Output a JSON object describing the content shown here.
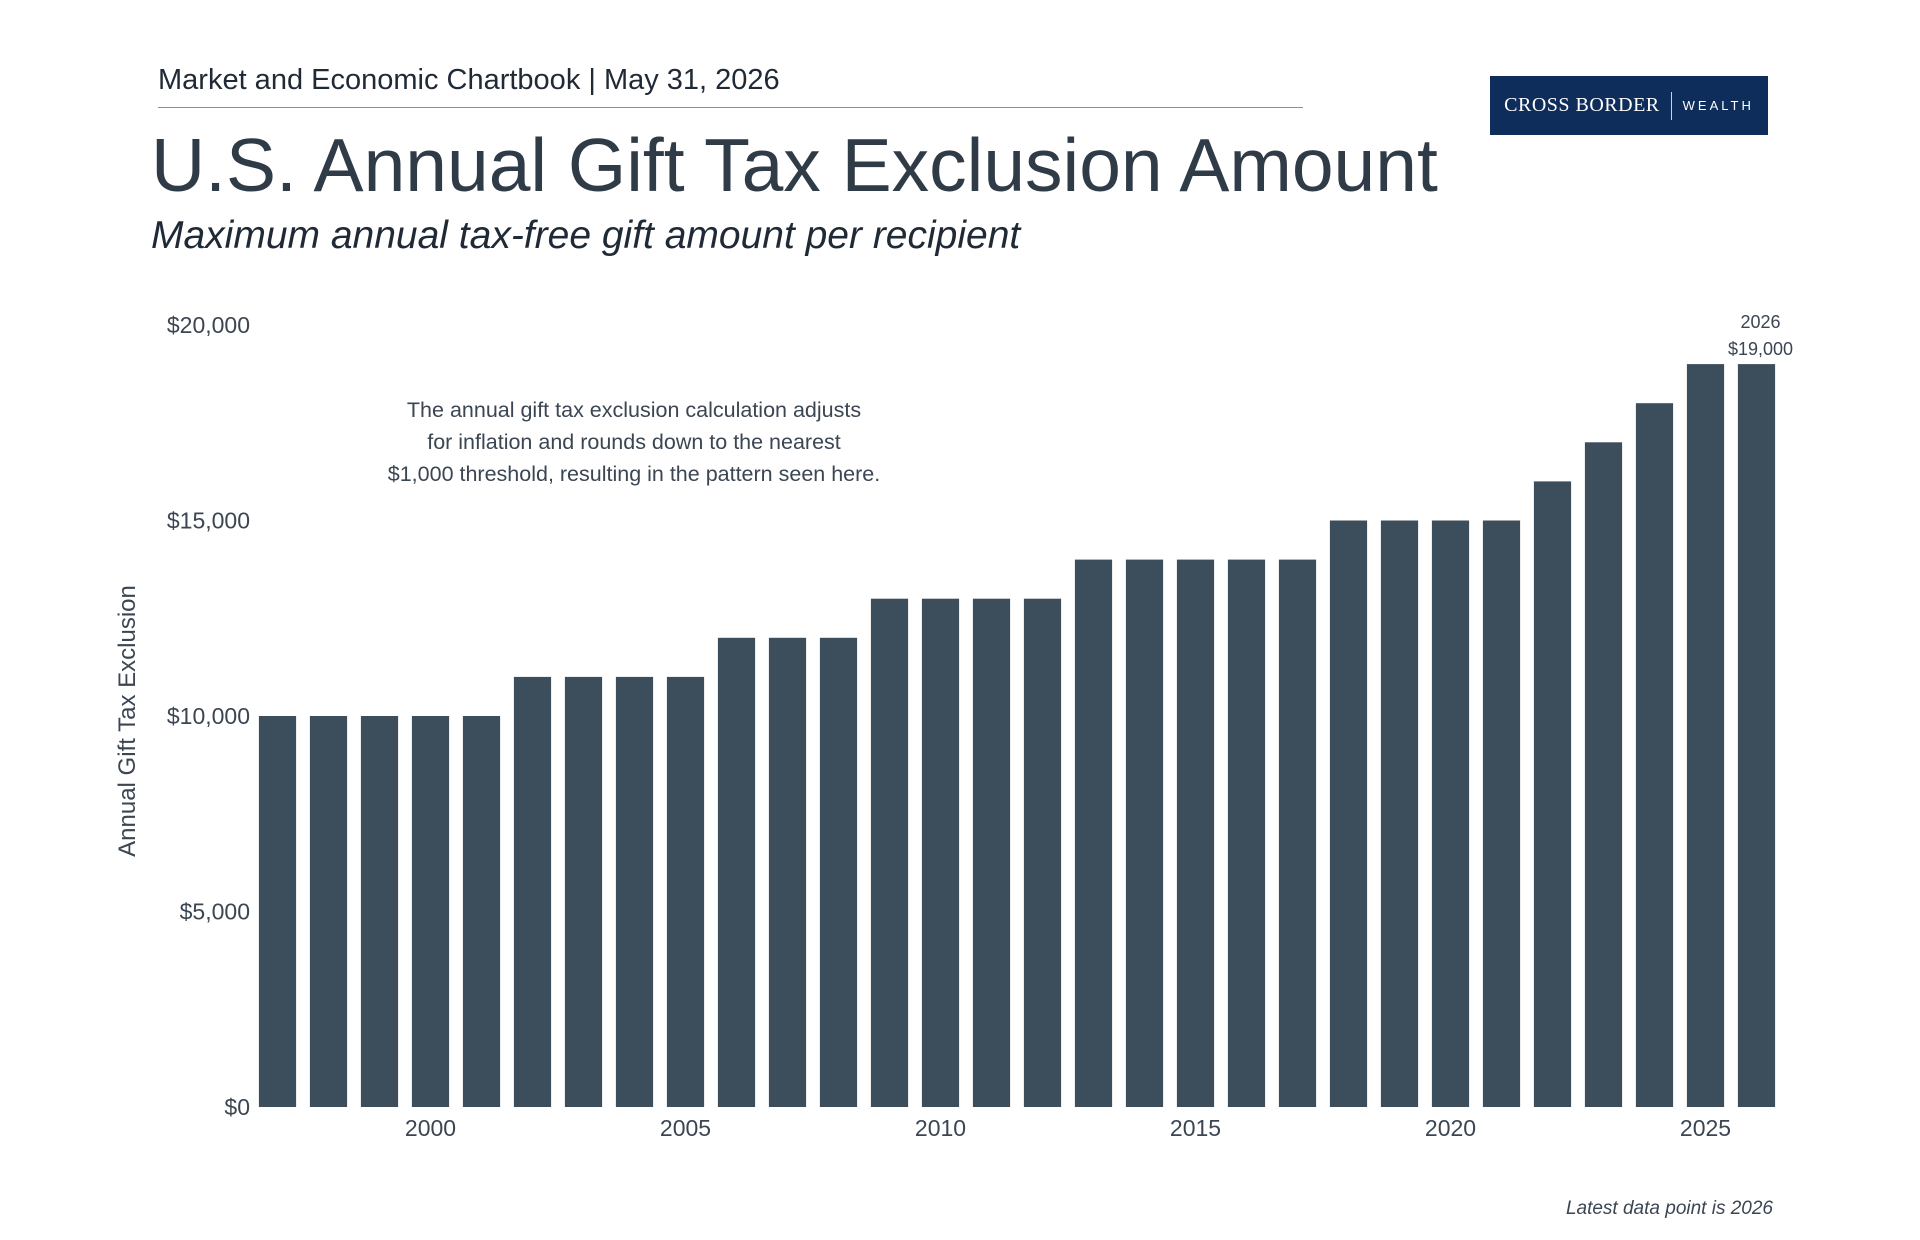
{
  "header": {
    "publication": "Market and Economic Chartbook | May 31, 2026",
    "title": "U.S. Annual Gift Tax Exclusion Amount",
    "subtitle": "Maximum annual tax-free gift amount per recipient"
  },
  "logo": {
    "primary": "CROSS BORDER",
    "secondary": "WEALTH"
  },
  "colors": {
    "bar": "#3c4d5c",
    "text": "#2f3b47",
    "logo_bg": "#0f2d5a"
  },
  "annotation": {
    "lines": [
      "The annual gift tax exclusion calculation adjusts",
      "for inflation and rounds down to the nearest",
      "$1,000 threshold, resulting in the pattern seen here."
    ]
  },
  "footnote": "Latest data point is 2026",
  "chart_data": {
    "type": "bar",
    "title": "U.S. Annual Gift Tax Exclusion Amount",
    "subtitle": "Maximum annual tax-free gift amount per recipient",
    "xlabel": "",
    "ylabel": "Annual Gift Tax Exclusion",
    "categories": [
      1997,
      1998,
      1999,
      2000,
      2001,
      2002,
      2003,
      2004,
      2005,
      2006,
      2007,
      2008,
      2009,
      2010,
      2011,
      2012,
      2013,
      2014,
      2015,
      2016,
      2017,
      2018,
      2019,
      2020,
      2021,
      2022,
      2023,
      2024,
      2025,
      2026
    ],
    "values": [
      10000,
      10000,
      10000,
      10000,
      10000,
      11000,
      11000,
      11000,
      11000,
      12000,
      12000,
      12000,
      13000,
      13000,
      13000,
      13000,
      14000,
      14000,
      14000,
      14000,
      14000,
      15000,
      15000,
      15000,
      15000,
      16000,
      17000,
      18000,
      19000,
      19000
    ],
    "ylim": [
      0,
      20000
    ],
    "yticks": [
      0,
      5000,
      10000,
      15000,
      20000
    ],
    "ytick_labels": [
      "$0",
      "$5,000",
      "$10,000",
      "$15,000",
      "$20,000"
    ],
    "xticks": [
      2000,
      2005,
      2010,
      2015,
      2020,
      2025
    ],
    "xtick_labels": [
      "2000",
      "2005",
      "2010",
      "2015",
      "2020",
      "2025"
    ],
    "last_point_label": {
      "year": "2026",
      "value": "$19,000"
    },
    "grid": false,
    "legend": "none"
  }
}
